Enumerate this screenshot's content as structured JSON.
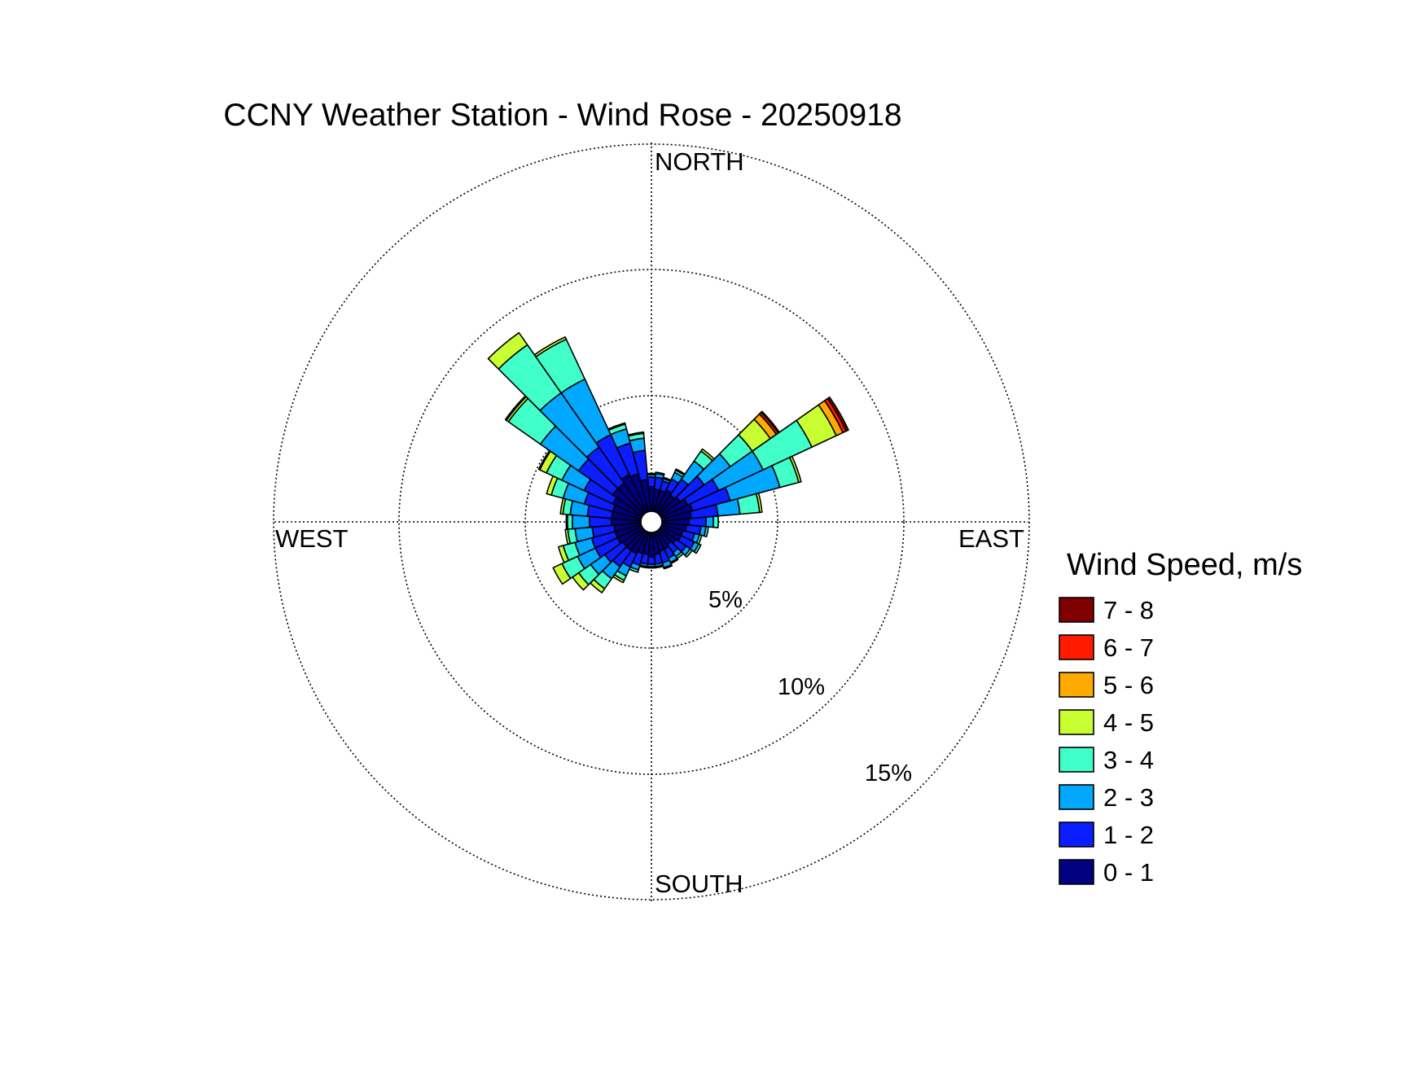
{
  "chart_data": {
    "type": "windrose",
    "title": "CCNY Weather Station - Wind Rose - 20250918",
    "directions": {
      "north": "NORTH",
      "east": "EAST",
      "south": "SOUTH",
      "west": "WEST"
    },
    "ring_labels": [
      "5%",
      "10%",
      "15%"
    ],
    "rings": [
      5,
      10,
      15
    ],
    "rmax": 15,
    "legend": {
      "title": "Wind Speed, m/s",
      "bins": [
        "7 - 8",
        "6 - 7",
        "5 - 6",
        "4 - 5",
        "3 - 4",
        "2 - 3",
        "1 - 2",
        "0 - 1"
      ],
      "colors": [
        "#800000",
        "#ff1a00",
        "#ffaa00",
        "#c8ff32",
        "#40ffc8",
        "#00a8ff",
        "#0a1eff",
        "#000080"
      ]
    },
    "speed_bins_low_to_high": [
      "0 - 1",
      "1 - 2",
      "2 - 3",
      "3 - 4",
      "4 - 5",
      "5 - 6",
      "6 - 7",
      "7 - 8"
    ],
    "bar_colors_low_to_high": [
      "#000080",
      "#0a1eff",
      "#00a8ff",
      "#40ffc8",
      "#c8ff32",
      "#ffaa00",
      "#ff1a00",
      "#800000"
    ],
    "sector_width_deg": 10,
    "sectors": [
      {
        "dir": 0,
        "values": [
          1.0,
          0.4,
          0.1,
          0.05,
          0,
          0,
          0,
          0
        ]
      },
      {
        "dir": 10,
        "values": [
          0.9,
          0.5,
          0.15,
          0.05,
          0,
          0,
          0,
          0
        ]
      },
      {
        "dir": 20,
        "values": [
          0.9,
          0.4,
          0.1,
          0.05,
          0,
          0,
          0,
          0
        ]
      },
      {
        "dir": 30,
        "values": [
          1.0,
          0.5,
          0.3,
          0.1,
          0.05,
          0,
          0,
          0
        ]
      },
      {
        "dir": 40,
        "values": [
          0.9,
          0.8,
          0.9,
          0.5,
          0.1,
          0,
          0,
          0
        ]
      },
      {
        "dir": 50,
        "values": [
          1.0,
          1.2,
          1.3,
          1.1,
          0.9,
          0.3,
          0.1,
          0.05
        ]
      },
      {
        "dir": 60,
        "values": [
          1.2,
          1.4,
          2.0,
          2.2,
          1.1,
          0.3,
          0.15,
          0.1
        ]
      },
      {
        "dir": 70,
        "values": [
          1.3,
          1.6,
          2.1,
          0.8,
          0.1,
          0,
          0,
          0
        ]
      },
      {
        "dir": 80,
        "values": [
          1.2,
          1.1,
          0.9,
          0.8,
          0.1,
          0,
          0,
          0
        ]
      },
      {
        "dir": 90,
        "values": [
          1.1,
          0.7,
          0.3,
          0.2,
          0,
          0,
          0,
          0
        ]
      },
      {
        "dir": 100,
        "values": [
          1.0,
          0.6,
          0.2,
          0.1,
          0,
          0,
          0,
          0
        ]
      },
      {
        "dir": 110,
        "values": [
          0.9,
          0.5,
          0.2,
          0.1,
          0,
          0,
          0,
          0
        ]
      },
      {
        "dir": 120,
        "values": [
          0.9,
          0.6,
          0.2,
          0.1,
          0,
          0,
          0,
          0
        ]
      },
      {
        "dir": 130,
        "values": [
          0.8,
          0.5,
          0.2,
          0.1,
          0,
          0,
          0,
          0
        ]
      },
      {
        "dir": 140,
        "values": [
          0.7,
          0.4,
          0.2,
          0.1,
          0,
          0,
          0,
          0
        ]
      },
      {
        "dir": 150,
        "values": [
          0.8,
          0.4,
          0.2,
          0.05,
          0,
          0,
          0,
          0
        ]
      },
      {
        "dir": 160,
        "values": [
          0.8,
          0.5,
          0.2,
          0.05,
          0,
          0,
          0,
          0
        ]
      },
      {
        "dir": 170,
        "values": [
          0.9,
          0.4,
          0.1,
          0.05,
          0,
          0,
          0,
          0
        ]
      },
      {
        "dir": 180,
        "values": [
          1.0,
          0.3,
          0.1,
          0.05,
          0,
          0,
          0,
          0
        ]
      },
      {
        "dir": 190,
        "values": [
          0.9,
          0.4,
          0.1,
          0.05,
          0,
          0,
          0,
          0
        ]
      },
      {
        "dir": 200,
        "values": [
          0.9,
          0.5,
          0.2,
          0.1,
          0,
          0,
          0,
          0
        ]
      },
      {
        "dir": 210,
        "values": [
          1.0,
          0.6,
          0.4,
          0.2,
          0.1,
          0,
          0,
          0
        ]
      },
      {
        "dir": 220,
        "values": [
          1.0,
          0.8,
          0.6,
          0.5,
          0.2,
          0,
          0,
          0
        ]
      },
      {
        "dir": 230,
        "values": [
          1.0,
          0.9,
          0.7,
          0.6,
          0.3,
          0,
          0,
          0
        ]
      },
      {
        "dir": 240,
        "values": [
          1.1,
          1.0,
          0.8,
          0.7,
          0.4,
          0,
          0,
          0
        ]
      },
      {
        "dir": 250,
        "values": [
          1.1,
          1.0,
          0.7,
          0.5,
          0.2,
          0,
          0,
          0
        ]
      },
      {
        "dir": 260,
        "values": [
          1.1,
          0.9,
          0.7,
          0.3,
          0.1,
          0,
          0,
          0
        ]
      },
      {
        "dir": 270,
        "values": [
          1.2,
          0.9,
          0.7,
          0.2,
          0.05,
          0,
          0,
          0
        ]
      },
      {
        "dir": 280,
        "values": [
          1.2,
          1.0,
          0.7,
          0.3,
          0.1,
          0,
          0,
          0
        ]
      },
      {
        "dir": 290,
        "values": [
          1.2,
          1.2,
          0.9,
          0.5,
          0.2,
          0,
          0,
          0
        ]
      },
      {
        "dir": 300,
        "values": [
          1.3,
          1.3,
          1.0,
          0.7,
          0.3,
          0.05,
          0,
          0
        ]
      },
      {
        "dir": 310,
        "values": [
          1.5,
          1.7,
          1.9,
          1.6,
          0.1,
          0.05,
          0,
          0
        ]
      },
      {
        "dir": 320,
        "values": [
          1.5,
          1.8,
          2.7,
          2.4,
          0.6,
          0,
          0,
          0
        ]
      },
      {
        "dir": 330,
        "values": [
          1.7,
          1.8,
          2.5,
          1.8,
          0.1,
          0,
          0,
          0
        ]
      },
      {
        "dir": 340,
        "values": [
          1.6,
          1.3,
          0.6,
          0.2,
          0.05,
          0,
          0,
          0
        ]
      },
      {
        "dir": 350,
        "values": [
          1.3,
          1.2,
          0.5,
          0.2,
          0.05,
          0,
          0,
          0
        ]
      }
    ]
  }
}
